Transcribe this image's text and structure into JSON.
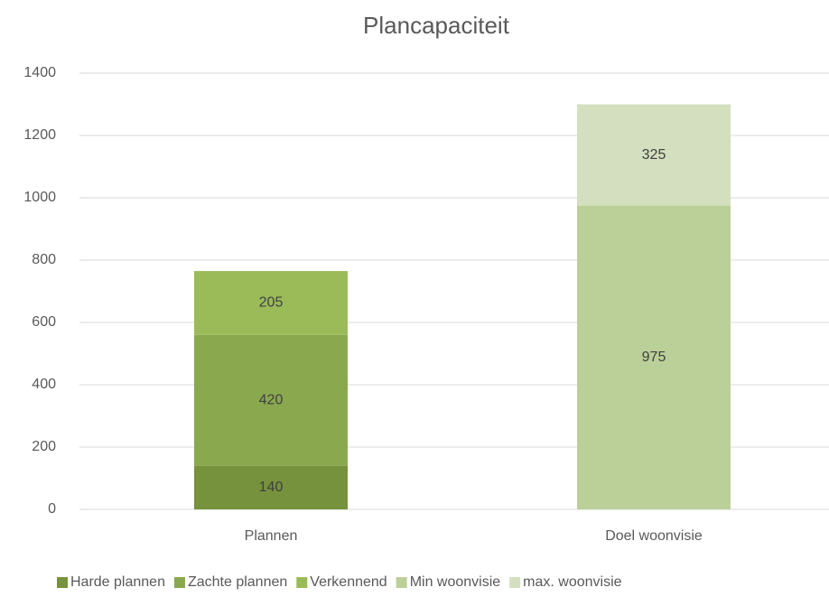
{
  "chart_data": {
    "type": "stacked-bar",
    "title": "Plancapaciteit",
    "categories": [
      "Plannen",
      "Doel woonvisie"
    ],
    "series": [
      {
        "name": "Harde plannen",
        "color": "#76923c",
        "values": [
          140,
          null
        ]
      },
      {
        "name": "Zachte plannen",
        "color": "#8aa84e",
        "values": [
          420,
          null
        ]
      },
      {
        "name": "Verkennend",
        "color": "#9bbb59",
        "values": [
          205,
          null
        ]
      },
      {
        "name": "Min woonvisie",
        "color": "#bbd098",
        "values": [
          null,
          975
        ]
      },
      {
        "name": "max. woonvisie",
        "color": "#d3dfbe",
        "values": [
          null,
          325
        ]
      }
    ],
    "ylim": [
      0,
      1400
    ],
    "yticks": [
      0,
      200,
      400,
      600,
      800,
      1000,
      1200,
      1400
    ],
    "grid": true,
    "legend": "bottom"
  }
}
